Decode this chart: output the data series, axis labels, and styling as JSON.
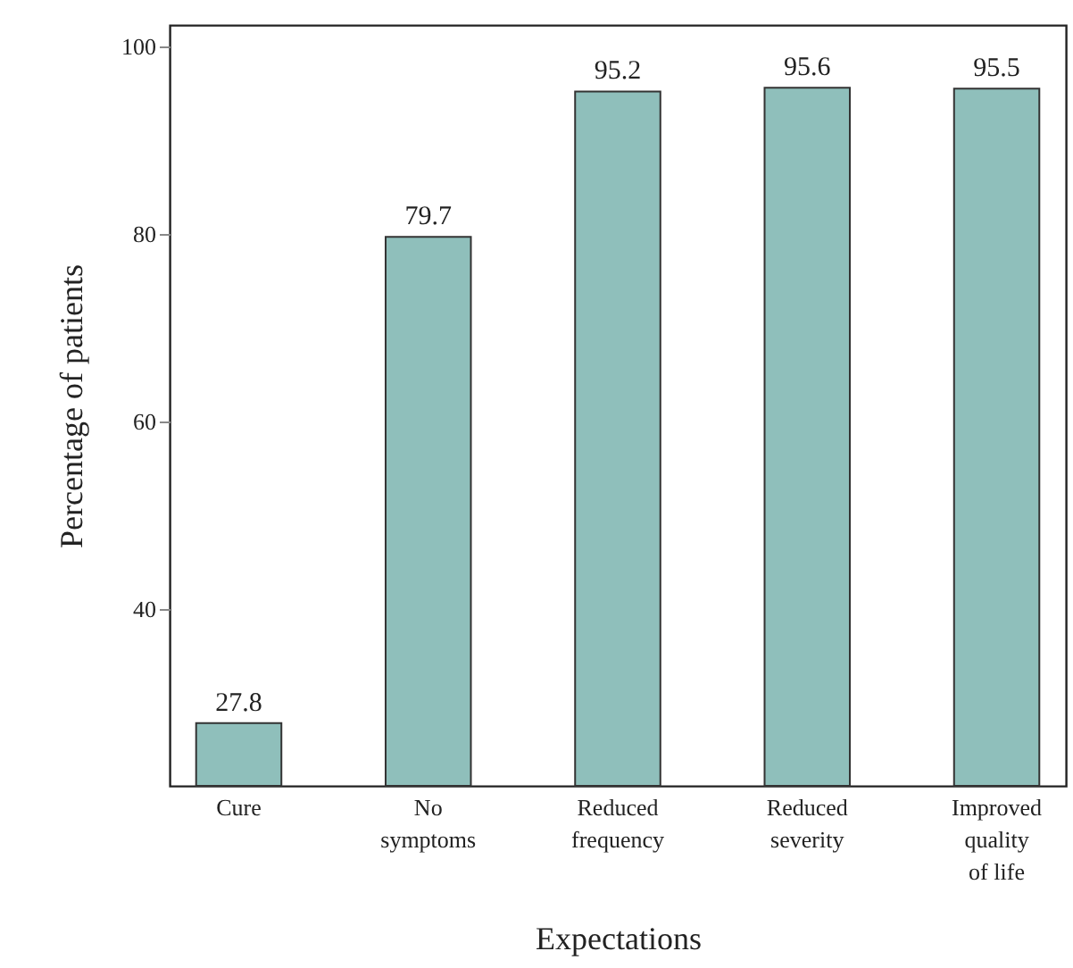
{
  "chart_data": {
    "type": "bar",
    "xlabel": "Expectations",
    "ylabel": "Percentage of patients",
    "categories": [
      "Cure",
      "No symptoms",
      "Reduced frequency",
      "Reduced severity",
      "Improved quality of life"
    ],
    "values": [
      27.8,
      79.7,
      95.2,
      95.6,
      95.5
    ],
    "color": "#8fbfbb",
    "ylim": [
      21.1,
      102.3
    ],
    "yticks": [
      40,
      60,
      80,
      100
    ],
    "data_labels": true
  }
}
